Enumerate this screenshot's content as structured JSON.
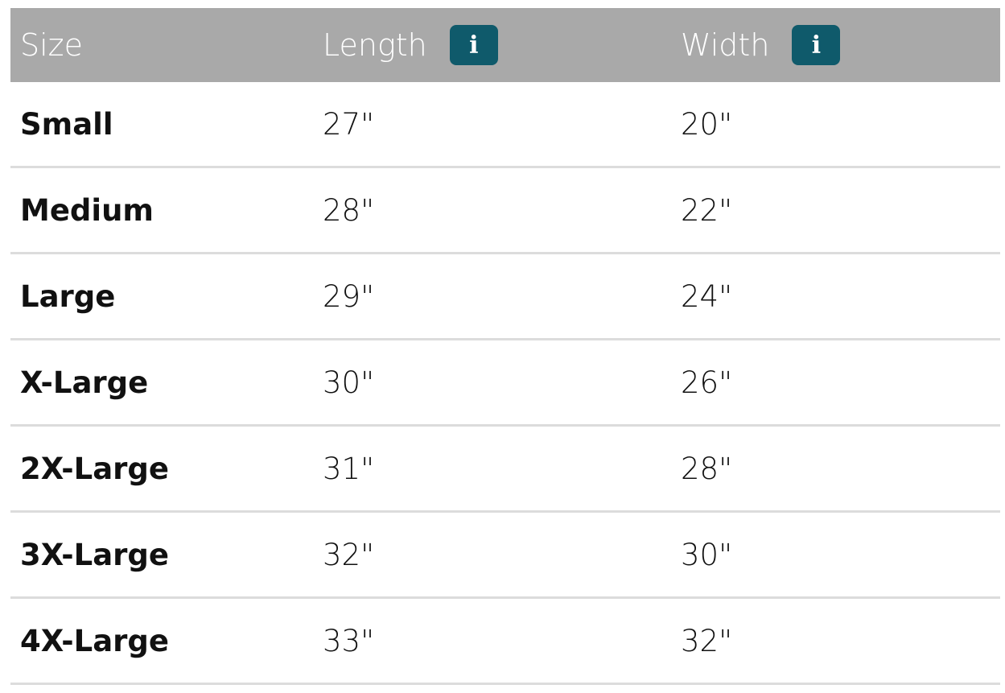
{
  "header": {
    "size": "Size",
    "length": "Length",
    "width": "Width",
    "info_label": "i"
  },
  "accent_color": "#0f5a6b",
  "rows": [
    {
      "size": "Small",
      "length": "27\"",
      "width": "20\""
    },
    {
      "size": "Medium",
      "length": "28\"",
      "width": "22\""
    },
    {
      "size": "Large",
      "length": "29\"",
      "width": "24\""
    },
    {
      "size": "X-Large",
      "length": "30\"",
      "width": "26\""
    },
    {
      "size": "2X-Large",
      "length": "31\"",
      "width": "28\""
    },
    {
      "size": "3X-Large",
      "length": "32\"",
      "width": "30\""
    },
    {
      "size": "4X-Large",
      "length": "33\"",
      "width": "32\""
    }
  ]
}
